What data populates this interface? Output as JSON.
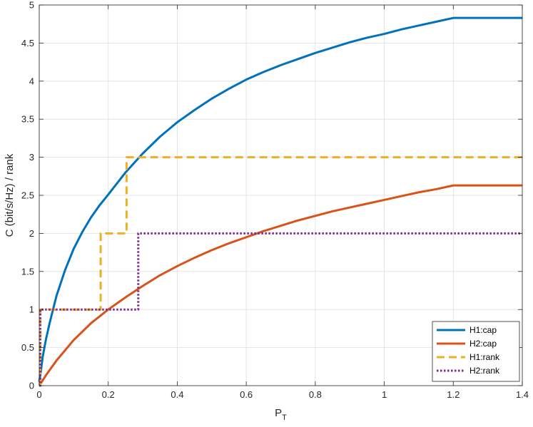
{
  "chart_data": {
    "type": "line",
    "title": "",
    "xlabel": "P",
    "xlabel_sub": "T",
    "ylabel": "C (bit/s/Hz) / rank",
    "xlim": [
      0,
      1.4
    ],
    "ylim": [
      0,
      5
    ],
    "x_ticks": [
      0,
      0.2,
      0.4,
      0.6,
      0.8,
      1,
      1.2,
      1.4
    ],
    "x_tick_labels": [
      "0",
      "0.2",
      "0.4",
      "0.6",
      "0.8",
      "1",
      "1.2",
      "1.4"
    ],
    "y_ticks": [
      0,
      0.5,
      1,
      1.5,
      2,
      2.5,
      3,
      3.5,
      4,
      4.5,
      5
    ],
    "y_tick_labels": [
      "0",
      "0.5",
      "1",
      "1.5",
      "2",
      "2.5",
      "3",
      "3.5",
      "4",
      "4.5",
      "5"
    ],
    "grid": true,
    "legend_position": "bottom-right",
    "series": [
      {
        "name": "H1:cap",
        "style": "solid",
        "color": "#0072BD",
        "x": [
          0,
          0.005,
          0.01,
          0.02,
          0.03,
          0.05,
          0.075,
          0.1,
          0.125,
          0.15,
          0.175,
          0.2,
          0.25,
          0.3,
          0.35,
          0.4,
          0.45,
          0.5,
          0.55,
          0.6,
          0.65,
          0.7,
          0.75,
          0.8,
          0.85,
          0.9,
          0.95,
          1.0,
          1.05,
          1.1,
          1.15,
          1.2,
          1.4
        ],
        "y": [
          0.05,
          0.2,
          0.38,
          0.62,
          0.82,
          1.18,
          1.52,
          1.8,
          2.02,
          2.21,
          2.37,
          2.51,
          2.8,
          3.05,
          3.27,
          3.46,
          3.62,
          3.77,
          3.9,
          4.02,
          4.12,
          4.21,
          4.29,
          4.37,
          4.44,
          4.51,
          4.57,
          4.62,
          4.68,
          4.73,
          4.78,
          4.83,
          4.83
        ]
      },
      {
        "name": "H2:cap",
        "style": "solid",
        "color": "#D95319",
        "x": [
          0,
          0.01,
          0.02,
          0.05,
          0.1,
          0.15,
          0.2,
          0.25,
          0.3,
          0.35,
          0.4,
          0.45,
          0.5,
          0.55,
          0.6,
          0.65,
          0.7,
          0.75,
          0.8,
          0.85,
          0.9,
          0.95,
          1.0,
          1.05,
          1.1,
          1.15,
          1.2,
          1.4
        ],
        "y": [
          0,
          0.07,
          0.14,
          0.33,
          0.6,
          0.82,
          1.0,
          1.16,
          1.31,
          1.45,
          1.57,
          1.68,
          1.78,
          1.87,
          1.95,
          2.03,
          2.1,
          2.17,
          2.23,
          2.29,
          2.34,
          2.39,
          2.44,
          2.49,
          2.54,
          2.58,
          2.63,
          2.63
        ]
      },
      {
        "name": "H1:rank",
        "style": "dashed",
        "color": "#EDB120",
        "x": [
          0,
          0.003,
          0.003,
          0.178,
          0.178,
          0.253,
          0.253,
          1.4
        ],
        "y": [
          0,
          0,
          1,
          1,
          2,
          2,
          3,
          3
        ]
      },
      {
        "name": "H2:rank",
        "style": "dotted",
        "color": "#7E2F8E",
        "x": [
          0,
          0.003,
          0.003,
          0.287,
          0.287,
          1.4
        ],
        "y": [
          0,
          0,
          1,
          1,
          2,
          2
        ]
      }
    ]
  }
}
